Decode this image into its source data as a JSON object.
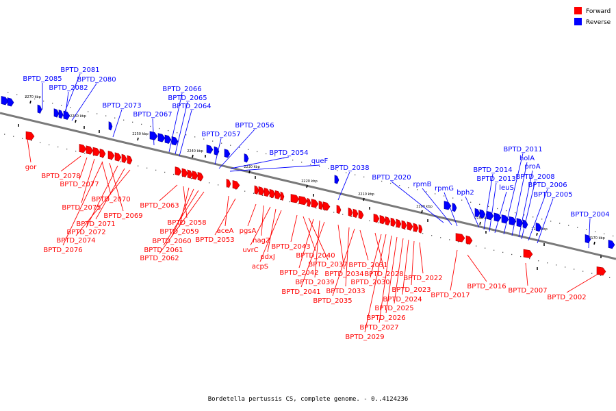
{
  "caption": "Bordetella pertussis CS, complete genome. - 0..4124236",
  "colors": {
    "forward": "#ff0000",
    "reverse": "#0000ff",
    "axis": "#808080"
  },
  "legend": [
    {
      "label": "Forward",
      "color": "#ff0000"
    },
    {
      "label": "Reverse",
      "color": "#0000ff"
    }
  ],
  "ticks": [
    "2270 kbp",
    "2260 kbp",
    "2250 kbp",
    "2240 kbp",
    "2230 kbp",
    "2220 kbp",
    "2210 kbp",
    "2200 kbp",
    "2190 kbp",
    "2180 kbp",
    "2170 kbp"
  ],
  "reverse_labels": [
    "BPTD_2085",
    "BPTD_2081",
    "BPTD_2082",
    "BPTD_2080",
    "BPTD_2073",
    "BPTD_2067",
    "BPTD_2066",
    "BPTD_2065",
    "BPTD_2064",
    "BPTD_2057",
    "BPTD_2056",
    "BPTD_2054",
    "queF",
    "BPTD_2038",
    "BPTD_2020",
    "rpmB",
    "rpmG",
    "bph2",
    "BPTD_2014",
    "BPTD_2013",
    "leuS",
    "BPTD_2011",
    "holA",
    "proA",
    "BPTD_2008",
    "BPTD_2006",
    "BPTD_2005",
    "BPTD_2004"
  ],
  "forward_labels": [
    "gor",
    "BPTD_2078",
    "BPTD_2077",
    "BPTD_2075",
    "BPTD_2070",
    "BPTD_2069",
    "BPTD_2072",
    "BPTD_2071",
    "BPTD_2074",
    "BPTD_2076",
    "BPTD_2063",
    "BPTD_2058",
    "BPTD_2059",
    "BPTD_2060",
    "BPTD_2061",
    "BPTD_2062",
    "aceA",
    "BPTD_2053",
    "pgsA",
    "nagZ",
    "uvrC",
    "pdxJ",
    "acpS",
    "BPTD_2043",
    "BPTD_2040",
    "BPTD_2037",
    "BPTD_2042",
    "BPTD_2039",
    "BPTD_2041",
    "BPTD_2034",
    "BPTD_2033",
    "BPTD_2035",
    "BPTD_2031",
    "BPTD_2028",
    "BPTD_2030",
    "BPTD_2022",
    "BPTD_2023",
    "BPTD_2024",
    "BPTD_2025",
    "BPTD_2026",
    "BPTD_2027",
    "BPTD_2029",
    "BPTD_2017",
    "BPTD_2016",
    "BPTD_2007",
    "BPTD_2002"
  ]
}
